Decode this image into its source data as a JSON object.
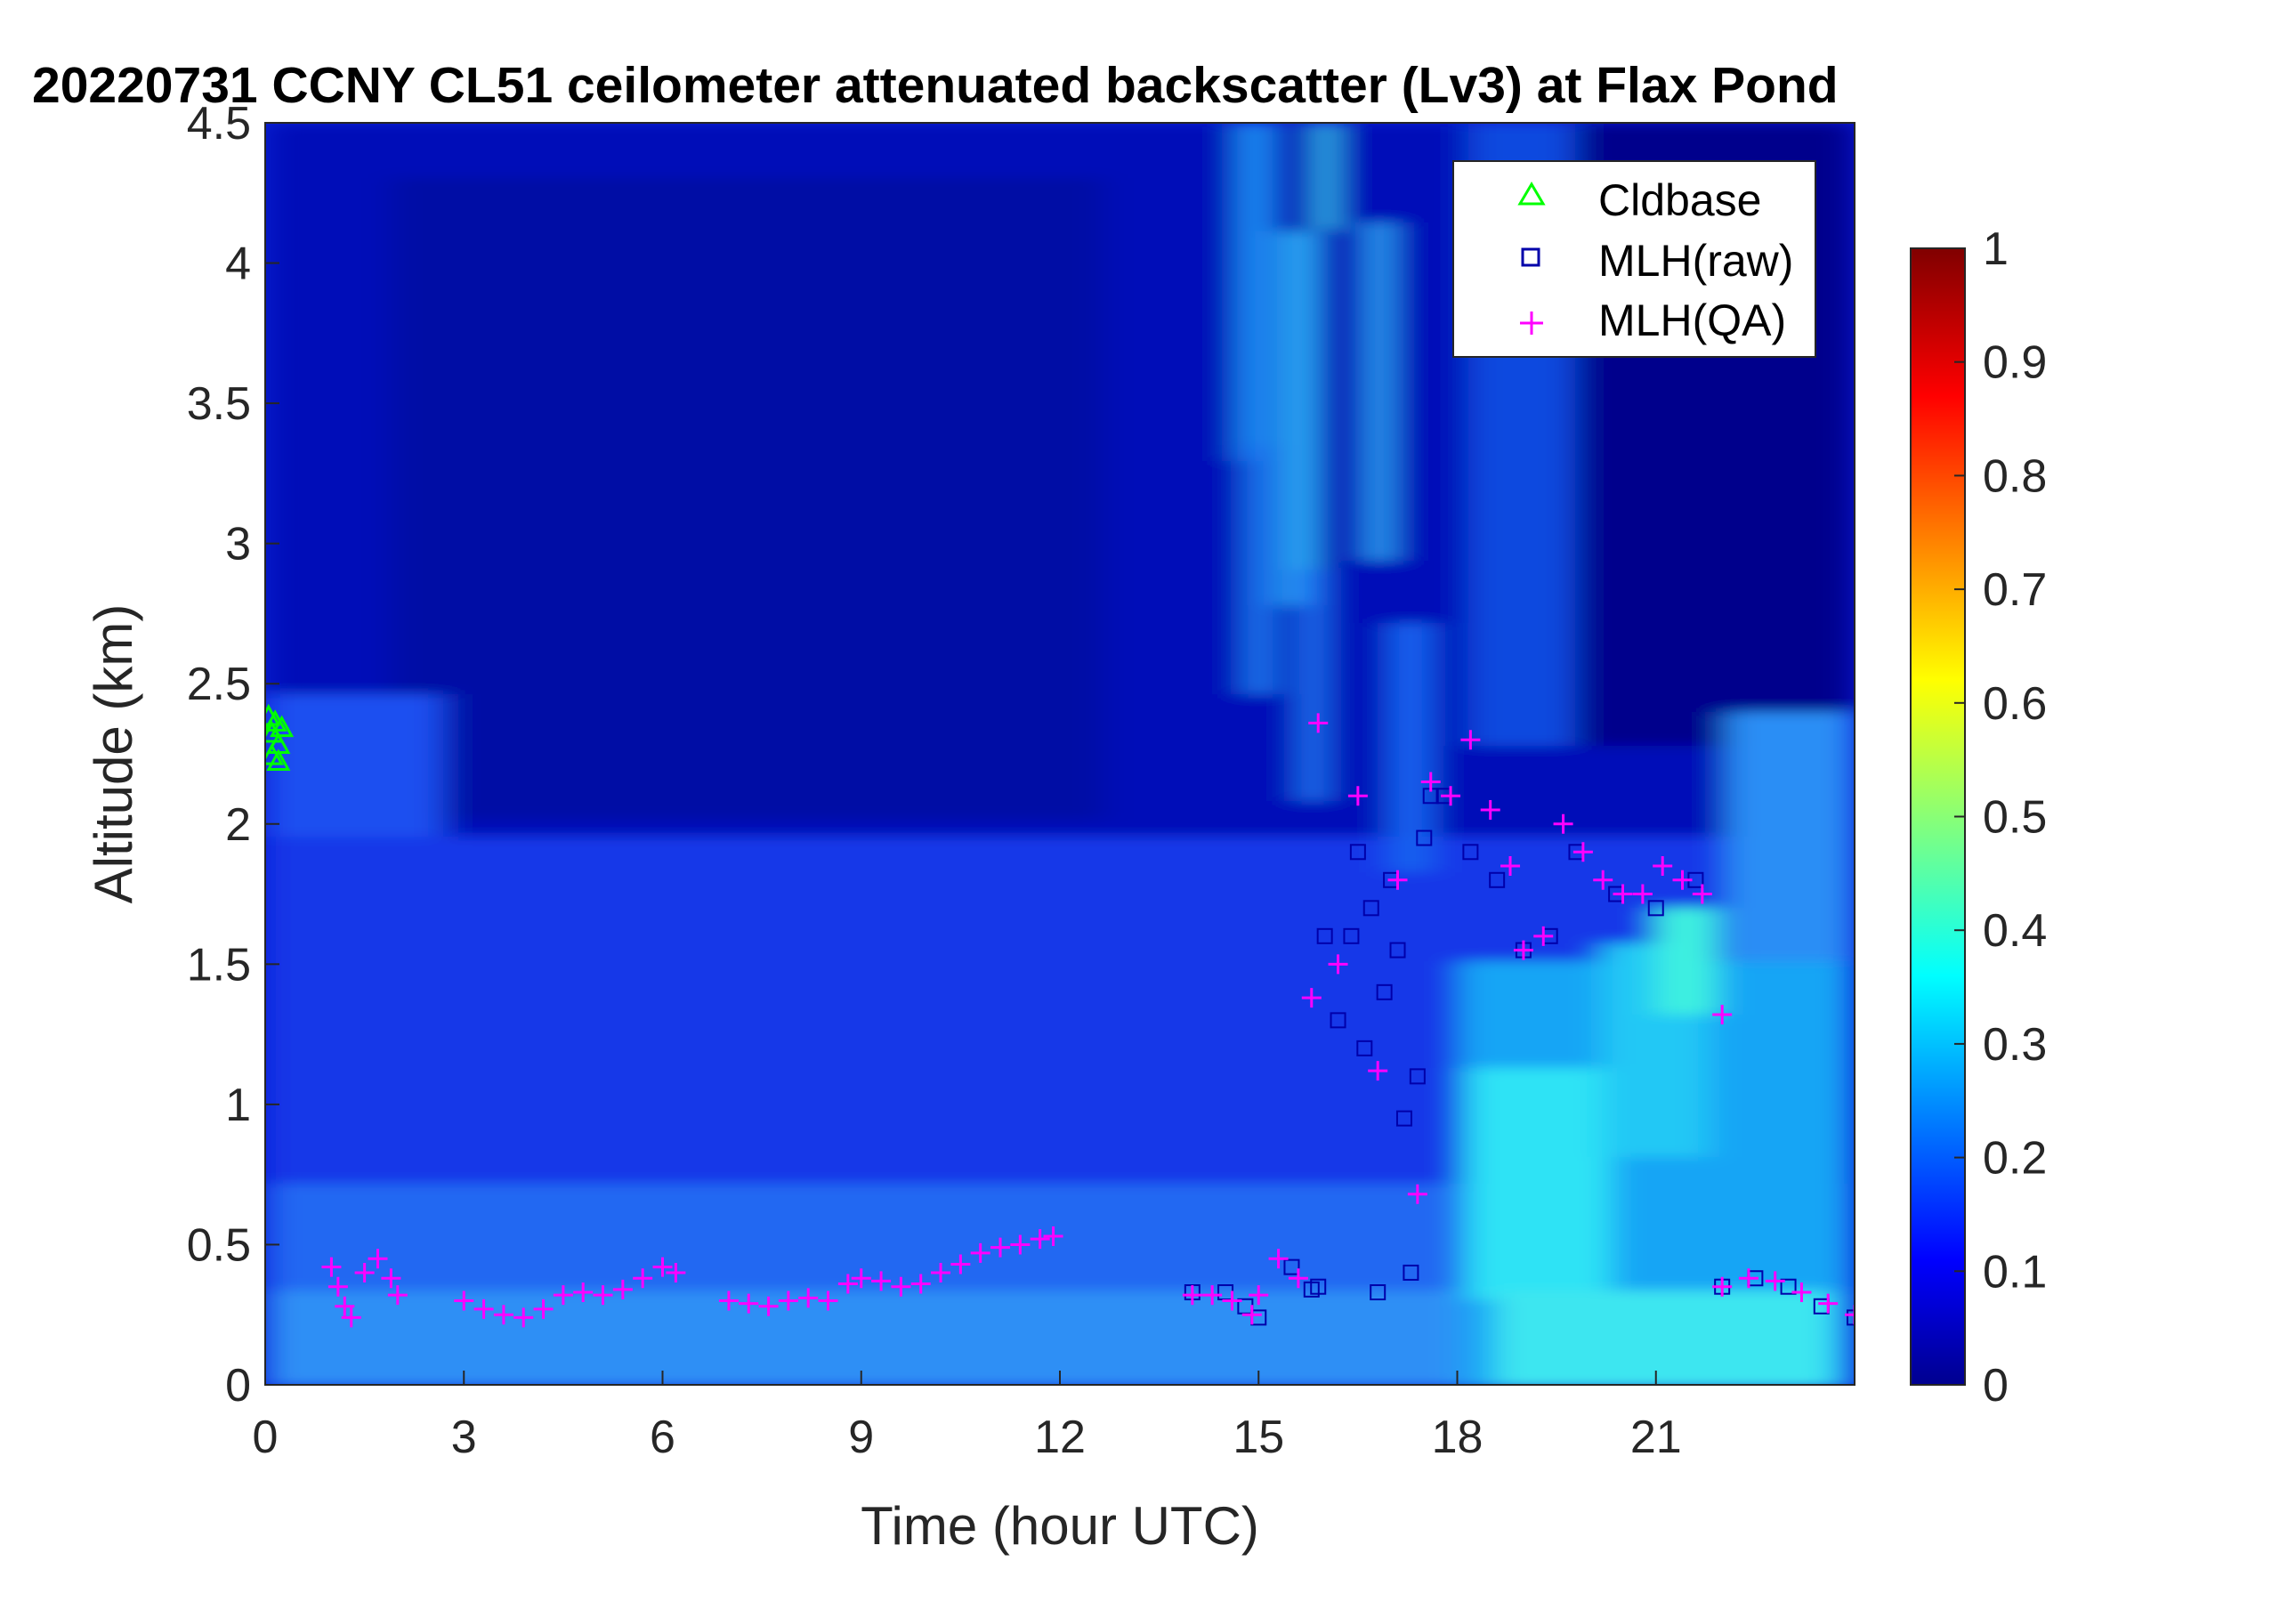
{
  "chart_data": {
    "type": "heatmap",
    "title": "20220731 CCNY CL51 ceilometer attenuated backscatter (Lv3) at Flax Pond",
    "xlabel": "Time (hour UTC)",
    "ylabel": "Altitude (km)",
    "xlim": [
      0,
      24
    ],
    "ylim": [
      0,
      4.5
    ],
    "x_ticks": [
      "0",
      "3",
      "6",
      "9",
      "12",
      "15",
      "18",
      "21"
    ],
    "y_ticks": [
      "0",
      "0.5",
      "1",
      "1.5",
      "2",
      "2.5",
      "3",
      "3.5",
      "4",
      "4.5"
    ],
    "colorbar": {
      "min": 0,
      "max": 1,
      "colormap": "jet",
      "ticks": [
        "0",
        "0.1",
        "0.2",
        "0.3",
        "0.4",
        "0.5",
        "0.6",
        "0.7",
        "0.8",
        "0.9",
        "1"
      ]
    },
    "legend": {
      "location": "top-right",
      "entries": [
        {
          "label": "Cldbase",
          "marker": "triangle",
          "color": "#00ff00"
        },
        {
          "label": "MLH(raw)",
          "marker": "square",
          "color": "#0000aa"
        },
        {
          "label": "MLH(QA)",
          "marker": "plus",
          "color": "#ff00ff"
        }
      ]
    },
    "series": [
      {
        "name": "Cldbase",
        "x": [
          0.05,
          0.1,
          0.15,
          0.2,
          0.25,
          0.1,
          0.2
        ],
        "y": [
          2.38,
          2.32,
          2.36,
          2.28,
          2.34,
          2.24,
          2.22
        ]
      },
      {
        "name": "MLH(raw)",
        "x": [
          14.0,
          14.5,
          14.8,
          15.0,
          15.5,
          15.8,
          15.9,
          16.0,
          16.2,
          16.4,
          16.5,
          16.6,
          16.7,
          16.8,
          16.9,
          17.0,
          17.1,
          17.2,
          17.3,
          17.4,
          17.5,
          17.6,
          17.8,
          18.2,
          18.6,
          19.0,
          19.4,
          19.8,
          20.4,
          21.0,
          21.6,
          22.0,
          22.5,
          23.0,
          23.5,
          24.0
        ],
        "y": [
          0.33,
          0.33,
          0.28,
          0.24,
          0.42,
          0.34,
          0.35,
          1.6,
          1.3,
          1.6,
          1.9,
          1.2,
          1.7,
          0.33,
          1.4,
          1.8,
          1.55,
          0.95,
          0.4,
          1.1,
          1.95,
          2.1,
          2.1,
          1.9,
          1.8,
          1.55,
          1.6,
          1.9,
          1.75,
          1.7,
          1.8,
          0.35,
          0.38,
          0.35,
          0.28,
          0.24
        ]
      },
      {
        "name": "MLH(QA)",
        "x": [
          1.0,
          1.1,
          1.2,
          1.3,
          1.5,
          1.7,
          1.9,
          2.0,
          3.0,
          3.3,
          3.6,
          3.9,
          4.2,
          4.5,
          4.8,
          5.1,
          5.4,
          5.7,
          6.0,
          6.2,
          7.0,
          7.3,
          7.6,
          7.9,
          8.2,
          8.5,
          8.8,
          9.0,
          9.3,
          9.6,
          9.9,
          10.2,
          10.5,
          10.8,
          11.1,
          11.4,
          11.7,
          11.9,
          14.0,
          14.3,
          14.6,
          14.9,
          15.0,
          15.3,
          15.6,
          15.8,
          15.9,
          16.2,
          16.5,
          16.8,
          17.1,
          17.4,
          17.6,
          17.9,
          18.2,
          18.5,
          18.8,
          19.0,
          19.3,
          19.6,
          19.9,
          20.2,
          20.5,
          20.8,
          21.1,
          21.4,
          21.7,
          22.0,
          22.0,
          22.4,
          22.8,
          23.2,
          23.6,
          24.0
        ],
        "y": [
          0.42,
          0.35,
          0.28,
          0.24,
          0.4,
          0.45,
          0.38,
          0.32,
          0.3,
          0.27,
          0.25,
          0.24,
          0.27,
          0.32,
          0.33,
          0.32,
          0.34,
          0.38,
          0.42,
          0.4,
          0.3,
          0.29,
          0.28,
          0.3,
          0.31,
          0.3,
          0.36,
          0.38,
          0.37,
          0.35,
          0.36,
          0.4,
          0.43,
          0.47,
          0.49,
          0.5,
          0.52,
          0.53,
          0.32,
          0.32,
          0.3,
          0.25,
          0.32,
          0.45,
          0.38,
          1.38,
          2.36,
          1.5,
          2.1,
          1.12,
          1.8,
          0.68,
          2.15,
          2.1,
          2.3,
          2.05,
          1.85,
          1.55,
          1.6,
          2.0,
          1.9,
          1.8,
          1.75,
          1.75,
          1.85,
          1.8,
          1.75,
          1.32,
          0.35,
          0.38,
          0.37,
          0.33,
          0.29,
          0.25
        ]
      }
    ]
  }
}
